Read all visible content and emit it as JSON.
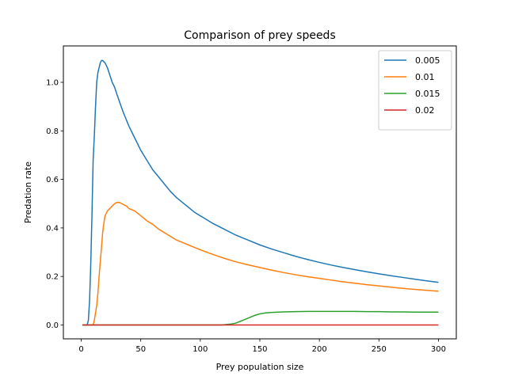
{
  "chart_data": {
    "type": "line",
    "title": "Comparison of prey speeds",
    "xlabel": "Prey population size",
    "ylabel": "Predation rate",
    "xlim": [
      -15,
      315
    ],
    "ylim": [
      -0.057,
      1.15
    ],
    "xticks": [
      0,
      50,
      100,
      150,
      200,
      250,
      300
    ],
    "yticks": [
      0.0,
      0.2,
      0.4,
      0.6,
      0.8,
      1.0
    ],
    "ytick_labels": [
      "0.0",
      "0.2",
      "0.4",
      "0.6",
      "0.8",
      "1.0"
    ],
    "grid": false,
    "legend_position": "top-right",
    "series": [
      {
        "name": "0.005",
        "color": "#1f77b4",
        "points": [
          [
            1,
            0
          ],
          [
            5,
            0
          ],
          [
            6,
            0.02
          ],
          [
            7,
            0.1
          ],
          [
            8,
            0.25
          ],
          [
            9,
            0.45
          ],
          [
            10,
            0.68
          ],
          [
            11,
            0.78
          ],
          [
            12,
            0.9
          ],
          [
            13,
            1.0
          ],
          [
            14,
            1.04
          ],
          [
            15,
            1.06
          ],
          [
            16,
            1.08
          ],
          [
            17,
            1.09
          ],
          [
            18,
            1.09
          ],
          [
            19,
            1.085
          ],
          [
            20,
            1.08
          ],
          [
            22,
            1.06
          ],
          [
            24,
            1.03
          ],
          [
            26,
            1.0
          ],
          [
            28,
            0.98
          ],
          [
            30,
            0.95
          ],
          [
            35,
            0.88
          ],
          [
            40,
            0.82
          ],
          [
            45,
            0.77
          ],
          [
            50,
            0.72
          ],
          [
            55,
            0.68
          ],
          [
            60,
            0.64
          ],
          [
            65,
            0.61
          ],
          [
            70,
            0.58
          ],
          [
            75,
            0.55
          ],
          [
            80,
            0.525
          ],
          [
            85,
            0.505
          ],
          [
            90,
            0.485
          ],
          [
            95,
            0.465
          ],
          [
            100,
            0.45
          ],
          [
            110,
            0.42
          ],
          [
            120,
            0.395
          ],
          [
            130,
            0.37
          ],
          [
            140,
            0.35
          ],
          [
            150,
            0.33
          ],
          [
            160,
            0.313
          ],
          [
            170,
            0.298
          ],
          [
            180,
            0.283
          ],
          [
            190,
            0.27
          ],
          [
            200,
            0.258
          ],
          [
            210,
            0.247
          ],
          [
            220,
            0.237
          ],
          [
            230,
            0.228
          ],
          [
            240,
            0.219
          ],
          [
            250,
            0.211
          ],
          [
            260,
            0.203
          ],
          [
            270,
            0.196
          ],
          [
            280,
            0.189
          ],
          [
            290,
            0.182
          ],
          [
            300,
            0.176
          ]
        ]
      },
      {
        "name": "0.01",
        "color": "#ff7f0e",
        "points": [
          [
            1,
            0
          ],
          [
            10,
            0
          ],
          [
            11,
            0.02
          ],
          [
            12,
            0.05
          ],
          [
            13,
            0.08
          ],
          [
            14,
            0.13
          ],
          [
            15,
            0.2
          ],
          [
            16,
            0.26
          ],
          [
            17,
            0.32
          ],
          [
            18,
            0.38
          ],
          [
            19,
            0.42
          ],
          [
            20,
            0.45
          ],
          [
            22,
            0.47
          ],
          [
            24,
            0.48
          ],
          [
            26,
            0.49
          ],
          [
            28,
            0.5
          ],
          [
            30,
            0.505
          ],
          [
            32,
            0.505
          ],
          [
            34,
            0.5
          ],
          [
            36,
            0.495
          ],
          [
            38,
            0.49
          ],
          [
            40,
            0.48
          ],
          [
            45,
            0.47
          ],
          [
            50,
            0.45
          ],
          [
            55,
            0.43
          ],
          [
            60,
            0.415
          ],
          [
            65,
            0.395
          ],
          [
            70,
            0.38
          ],
          [
            75,
            0.365
          ],
          [
            80,
            0.35
          ],
          [
            85,
            0.34
          ],
          [
            90,
            0.33
          ],
          [
            95,
            0.32
          ],
          [
            100,
            0.31
          ],
          [
            110,
            0.292
          ],
          [
            120,
            0.275
          ],
          [
            130,
            0.26
          ],
          [
            140,
            0.248
          ],
          [
            150,
            0.237
          ],
          [
            160,
            0.226
          ],
          [
            170,
            0.216
          ],
          [
            180,
            0.207
          ],
          [
            190,
            0.199
          ],
          [
            200,
            0.192
          ],
          [
            210,
            0.185
          ],
          [
            220,
            0.178
          ],
          [
            230,
            0.172
          ],
          [
            240,
            0.166
          ],
          [
            250,
            0.161
          ],
          [
            260,
            0.156
          ],
          [
            270,
            0.151
          ],
          [
            280,
            0.147
          ],
          [
            290,
            0.143
          ],
          [
            300,
            0.139
          ]
        ]
      },
      {
        "name": "0.015",
        "color": "#2ca02c",
        "points": [
          [
            1,
            0
          ],
          [
            118,
            0
          ],
          [
            122,
            0.002
          ],
          [
            126,
            0.004
          ],
          [
            128,
            0.006
          ],
          [
            130,
            0.008
          ],
          [
            132,
            0.012
          ],
          [
            134,
            0.016
          ],
          [
            136,
            0.02
          ],
          [
            138,
            0.024
          ],
          [
            140,
            0.028
          ],
          [
            142,
            0.032
          ],
          [
            144,
            0.036
          ],
          [
            146,
            0.04
          ],
          [
            148,
            0.043
          ],
          [
            150,
            0.046
          ],
          [
            155,
            0.05
          ],
          [
            160,
            0.052
          ],
          [
            170,
            0.054
          ],
          [
            180,
            0.055
          ],
          [
            190,
            0.056
          ],
          [
            200,
            0.056
          ],
          [
            210,
            0.056
          ],
          [
            220,
            0.056
          ],
          [
            230,
            0.056
          ],
          [
            240,
            0.055
          ],
          [
            250,
            0.055
          ],
          [
            260,
            0.054
          ],
          [
            270,
            0.054
          ],
          [
            280,
            0.053
          ],
          [
            290,
            0.053
          ],
          [
            300,
            0.053
          ]
        ]
      },
      {
        "name": "0.02",
        "color": "#d62728",
        "points": [
          [
            1,
            0
          ],
          [
            300,
            0
          ]
        ]
      }
    ]
  }
}
